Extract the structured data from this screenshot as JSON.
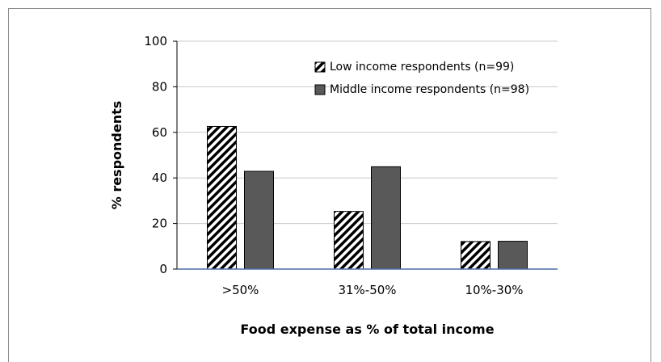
{
  "chart_data": {
    "type": "bar",
    "title": "",
    "xlabel": "Food expense as % of total income",
    "ylabel": "% respondents",
    "categories": [
      ">50%",
      "31%-50%",
      "10%-30%"
    ],
    "series": [
      {
        "name": "Low income respondents (n=99)",
        "values": [
          62.6,
          25.3,
          12.1
        ],
        "pattern": "diagonal-hatch",
        "color": "#000000"
      },
      {
        "name": "Middle income respondents (n=98)",
        "values": [
          42.9,
          44.9,
          12.2
        ],
        "pattern": "solid",
        "color": "#595959"
      }
    ],
    "ylim": [
      0,
      100
    ],
    "yticks": [
      0,
      20,
      40,
      60,
      80,
      100
    ],
    "grid": true,
    "legend": "top-right"
  }
}
